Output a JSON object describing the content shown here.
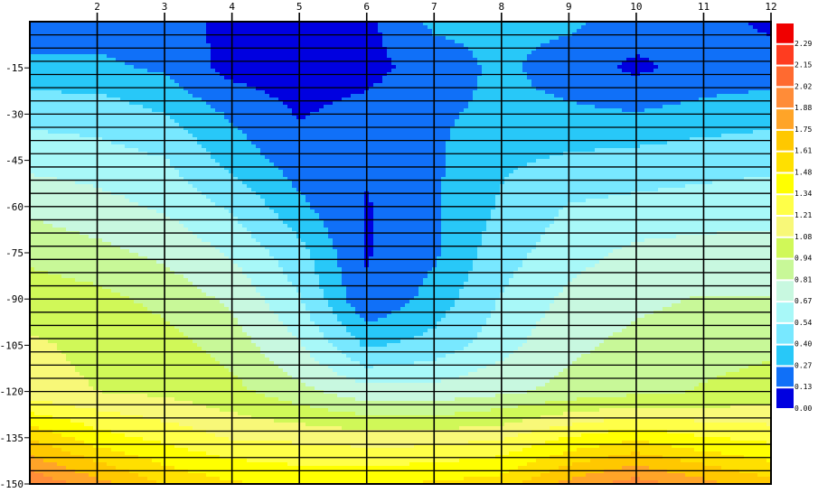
{
  "chart_data": {
    "type": "heatmap",
    "style": "filled-contour",
    "title": "",
    "xlabel": "",
    "ylabel": "",
    "xlim": [
      1,
      12
    ],
    "ylim": [
      -150,
      0
    ],
    "x_ticks": [
      "2",
      "3",
      "4",
      "5",
      "6",
      "7",
      "8",
      "9",
      "10",
      "11",
      "12"
    ],
    "y_ticks": [
      "-15",
      "-30",
      "-45",
      "-60",
      "-75",
      "-90",
      "-105",
      "-120",
      "-135",
      "-150"
    ],
    "grid": true,
    "legend": "right colorbar",
    "x": [
      1,
      2,
      3,
      4,
      5,
      6,
      7,
      8,
      9,
      10,
      11,
      12
    ],
    "y": [
      0,
      -15,
      -30,
      -45,
      -60,
      -75,
      -90,
      -105,
      -120,
      -135,
      -150
    ],
    "z": [
      [
        0.2,
        0.2,
        0.2,
        0.08,
        0.06,
        0.1,
        0.3,
        0.3,
        0.3,
        0.2,
        0.18,
        0.1
      ],
      [
        0.3,
        0.3,
        0.25,
        0.08,
        0.05,
        0.08,
        0.2,
        0.3,
        0.2,
        0.1,
        0.18,
        0.2
      ],
      [
        0.5,
        0.48,
        0.4,
        0.25,
        0.12,
        0.18,
        0.25,
        0.3,
        0.3,
        0.28,
        0.32,
        0.35
      ],
      [
        0.62,
        0.6,
        0.55,
        0.35,
        0.2,
        0.15,
        0.25,
        0.38,
        0.42,
        0.45,
        0.48,
        0.5
      ],
      [
        0.78,
        0.72,
        0.65,
        0.52,
        0.3,
        0.12,
        0.25,
        0.42,
        0.55,
        0.58,
        0.6,
        0.62
      ],
      [
        0.9,
        0.85,
        0.78,
        0.65,
        0.45,
        0.12,
        0.25,
        0.48,
        0.62,
        0.7,
        0.72,
        0.72
      ],
      [
        1.02,
        0.98,
        0.9,
        0.78,
        0.55,
        0.15,
        0.32,
        0.55,
        0.7,
        0.78,
        0.82,
        0.82
      ],
      [
        1.1,
        1.05,
        1.0,
        0.88,
        0.68,
        0.38,
        0.45,
        0.62,
        0.78,
        0.85,
        0.9,
        0.92
      ],
      [
        1.12,
        1.08,
        1.05,
        0.98,
        0.85,
        0.72,
        0.72,
        0.78,
        0.85,
        0.9,
        0.95,
        0.98
      ],
      [
        1.6,
        1.4,
        1.3,
        1.2,
        1.18,
        1.15,
        1.15,
        1.2,
        1.35,
        1.45,
        1.35,
        1.3
      ],
      [
        2.0,
        1.8,
        1.6,
        1.5,
        1.45,
        1.45,
        1.5,
        1.55,
        1.8,
        1.95,
        1.8,
        1.65
      ]
    ],
    "colorbar": {
      "levels": [
        "0.00",
        "0.13",
        "0.27",
        "0.40",
        "0.54",
        "0.67",
        "0.81",
        "0.94",
        "1.08",
        "1.21",
        "1.34",
        "1.48",
        "1.61",
        "1.75",
        "1.88",
        "2.02",
        "2.15",
        "2.29"
      ],
      "colors": [
        "#0000e0",
        "#1070f8",
        "#28c8f8",
        "#78e8ff",
        "#a8f8f8",
        "#c8f8e0",
        "#c8f898",
        "#d0f858",
        "#f8f878",
        "#ffff48",
        "#ffff00",
        "#ffe000",
        "#ffc800",
        "#ffa428",
        "#ff8c38",
        "#ff6a30",
        "#ff3c20",
        "#f00000"
      ]
    }
  }
}
